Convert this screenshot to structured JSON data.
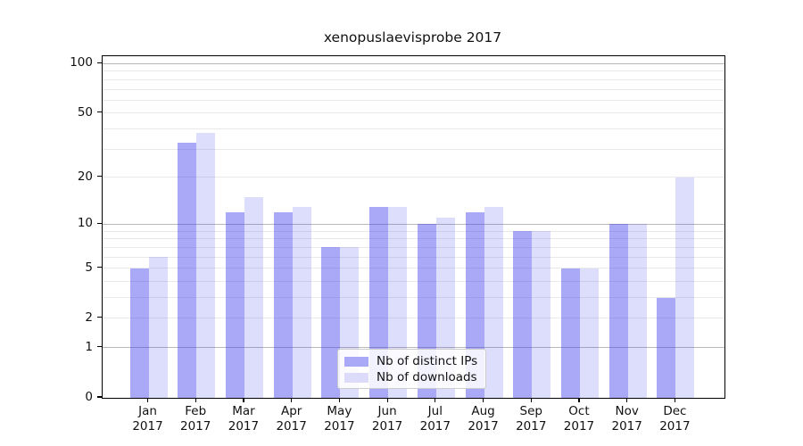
{
  "chart_data": {
    "type": "bar",
    "title": "xenopuslaevisprobe 2017",
    "year_label": "2017",
    "categories": [
      "Jan",
      "Feb",
      "Mar",
      "Apr",
      "May",
      "Jun",
      "Jul",
      "Aug",
      "Sep",
      "Oct",
      "Nov",
      "Dec"
    ],
    "series": [
      {
        "name": "Nb of distinct IPs",
        "swatch_color": "#a9a9f8",
        "fill": "rgba(64,64,240,0.45)",
        "values": [
          5,
          33,
          12,
          12,
          7,
          13,
          10,
          12,
          9,
          5,
          10,
          3
        ]
      },
      {
        "name": "Nb of downloads",
        "swatch_color": "#dcdcfa",
        "fill": "rgba(64,64,240,0.18)",
        "values": [
          6,
          38,
          15,
          13,
          7,
          13,
          11,
          13,
          9,
          5,
          10,
          20
        ]
      }
    ],
    "yscale": "log1p",
    "ylim": [
      0,
      111
    ],
    "ytick_labels": [
      "0",
      "1",
      "2",
      "5",
      "10",
      "20",
      "50",
      "100"
    ],
    "yticks": [
      0,
      1,
      2,
      5,
      10,
      20,
      50,
      100
    ],
    "major_gridlines": [
      1,
      10,
      100
    ],
    "minor_gridlines": [
      2,
      3,
      4,
      5,
      6,
      7,
      8,
      9,
      20,
      30,
      40,
      50,
      60,
      70,
      80,
      90
    ],
    "grid": true,
    "legend_position": "lower center",
    "colors": {
      "bar_distinct_ips": "#a9a9f8",
      "bar_downloads": "#dcdcfa",
      "major_grid": "#b8b8b8",
      "minor_grid": "#e9e9e9",
      "axis": "#000000",
      "text": "#111111",
      "legend_border": "#cccccc"
    }
  }
}
